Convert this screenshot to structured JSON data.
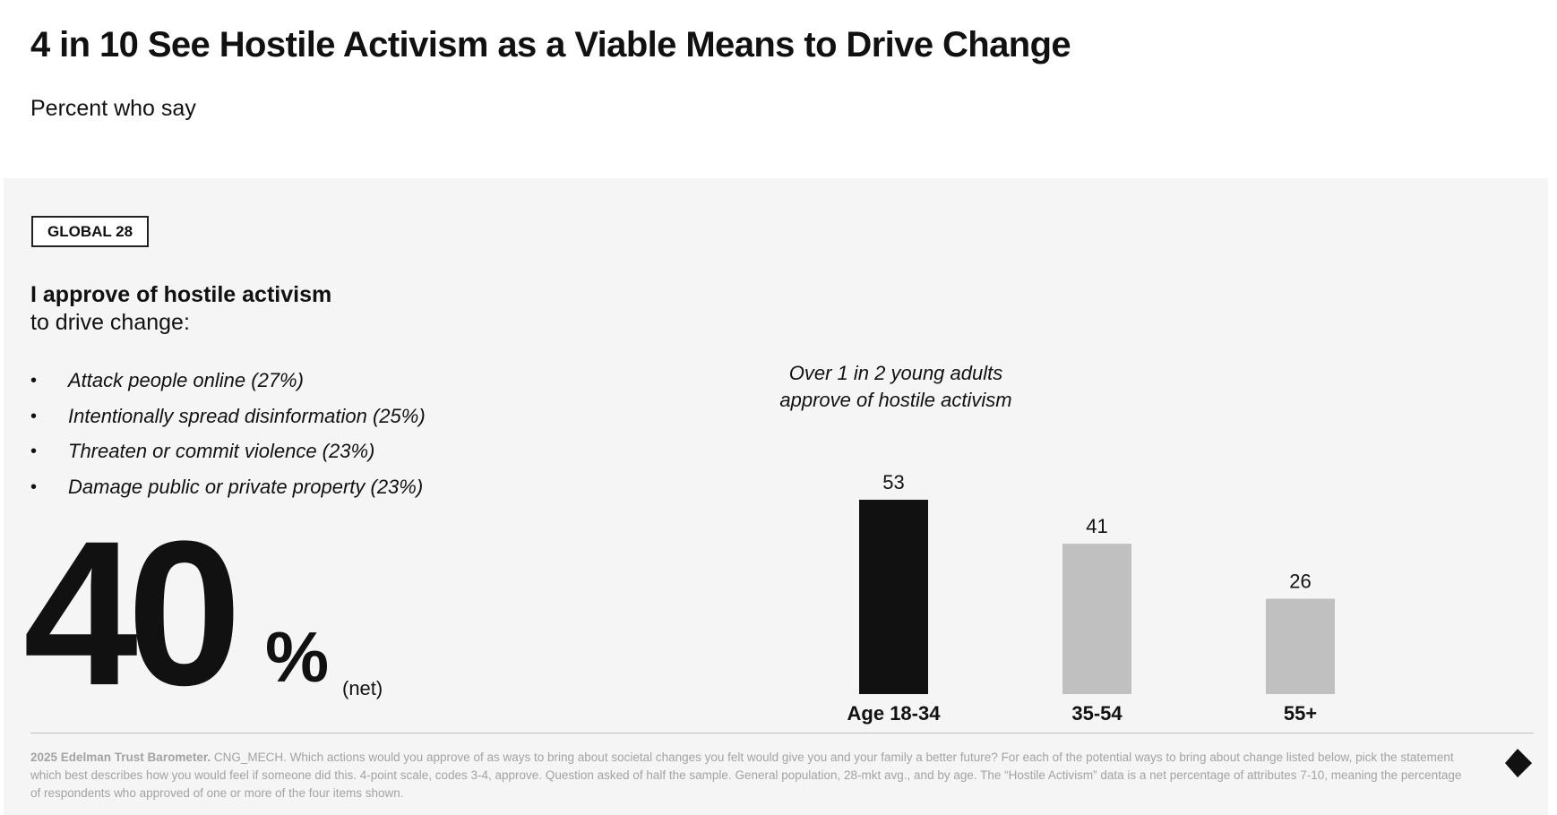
{
  "header": {
    "title": "4 in 10 See Hostile Activism as a Viable Means to Drive Change",
    "subtitle": "Percent who say"
  },
  "badge": "GLOBAL 28",
  "question": {
    "bold": "I approve of hostile activism",
    "regular": "to drive change:"
  },
  "bullets": [
    "Attack people online (27%)",
    "Intentionally spread disinformation (25%)",
    "Threaten or commit violence (23%)",
    "Damage public or private property (23%)"
  ],
  "headline_stat": {
    "value": "40",
    "unit": "%",
    "qualifier": "(net)"
  },
  "chart_note": {
    "line1": "Over 1 in 2 young adults",
    "line2": "approve of hostile activism"
  },
  "chart_data": {
    "type": "bar",
    "categories": [
      "Age 18-34",
      "35-54",
      "55+"
    ],
    "values": [
      53,
      41,
      26
    ],
    "colors": [
      "#111111",
      "#c0c0c0",
      "#c0c0c0"
    ],
    "ylim": [
      0,
      53
    ]
  },
  "footnote": {
    "source": "2025 Edelman Trust Barometer.",
    "text": "CNG_MECH. Which actions would you approve of as ways to bring about societal changes you felt would give you and your family a better future? For each of the potential ways to bring about change listed below, pick the statement which best describes how you would feel if someone did this. 4-point scale, codes 3-4, approve. Question asked of half the sample. General population, 28-mkt avg., and by age. The “Hostile Activism” data is a net percentage of attributes 7-10, meaning the percentage of respondents who approved of one or more of the four items shown."
  },
  "icons": {
    "next": "arrow-down-right-icon"
  }
}
